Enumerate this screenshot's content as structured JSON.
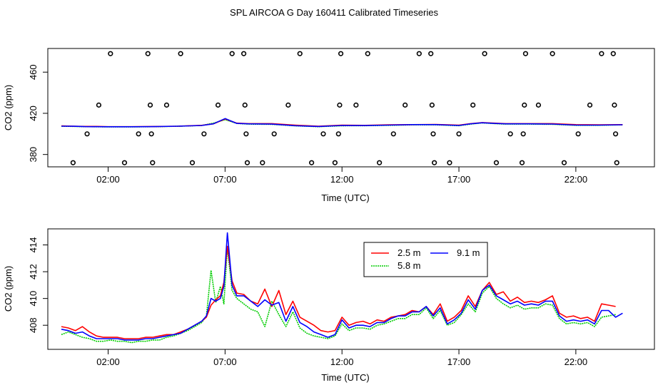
{
  "page_title": "SPL AIRCOA G  Day 160411  Calibrated Timeseries",
  "chart_data": [
    {
      "type": "line",
      "panel": "top",
      "title": "SPL AIRCOA G  Day 160411  Calibrated Timeseries",
      "xlabel": "Time (UTC)",
      "ylabel": "CO2 (ppm)",
      "xlim": [
        0,
        25.3
      ],
      "ylim": [
        368,
        483
      ],
      "x_ticks": [
        2,
        7,
        12,
        17,
        22
      ],
      "x_tick_labels": [
        "02:00",
        "07:00",
        "12:00",
        "17:00",
        "22:00"
      ],
      "y_ticks": [
        380,
        420,
        460
      ],
      "y_tick_labels": [
        "380",
        "420",
        "460"
      ],
      "grid": false,
      "legend": "none",
      "series": [
        {
          "name": "2.5 m",
          "color": "#ff0000",
          "x": [
            0,
            0.5,
            1,
            1.5,
            2,
            3,
            4,
            5,
            6,
            6.5,
            7,
            7.5,
            8,
            9,
            10,
            11,
            12,
            13,
            14,
            15,
            16,
            17,
            17.5,
            18,
            18.5,
            19,
            20,
            21,
            22,
            23,
            24
          ],
          "y": [
            407.8,
            407.5,
            407.3,
            407.3,
            407.0,
            407.0,
            407.2,
            407.5,
            408.3,
            409.8,
            414.5,
            410.5,
            410.0,
            410.0,
            408.5,
            407.5,
            408.5,
            408.3,
            408.8,
            409.0,
            409.2,
            408.5,
            410.0,
            411.0,
            410.5,
            410.0,
            410.0,
            410.0,
            409.0,
            408.8,
            409.0
          ]
        },
        {
          "name": "5.8 m",
          "color": "#00cc00",
          "x": [
            0,
            0.5,
            1,
            1.5,
            2,
            3,
            4,
            5,
            6,
            6.5,
            7,
            7.5,
            8,
            9,
            10,
            11,
            12,
            13,
            14,
            15,
            16,
            17,
            17.5,
            18,
            18.5,
            19,
            20,
            21,
            22,
            23,
            24
          ],
          "y": [
            407.4,
            407.3,
            407.0,
            406.9,
            406.8,
            406.8,
            407.0,
            407.4,
            408.2,
            410.5,
            413.8,
            410.2,
            409.5,
            409.3,
            407.8,
            407.0,
            407.9,
            408.0,
            408.3,
            408.8,
            408.8,
            408.0,
            409.5,
            410.7,
            410.0,
            409.5,
            409.5,
            409.3,
            408.3,
            408.3,
            408.8
          ]
        },
        {
          "name": "9.1 m",
          "color": "#0000ff",
          "x": [
            0,
            0.5,
            1,
            1.5,
            2,
            3,
            4,
            5,
            6,
            6.5,
            7,
            7.5,
            8,
            9,
            10,
            11,
            12,
            13,
            14,
            15,
            16,
            17,
            17.5,
            18,
            18.5,
            19,
            20,
            21,
            22,
            23,
            24
          ],
          "y": [
            407.5,
            407.4,
            407.1,
            407.0,
            406.9,
            406.9,
            407.1,
            407.5,
            408.2,
            409.8,
            414.9,
            410.2,
            409.8,
            409.5,
            408.0,
            407.2,
            408.2,
            408.1,
            408.5,
            409.0,
            409.0,
            408.2,
            409.8,
            410.8,
            410.2,
            409.8,
            409.8,
            409.6,
            408.5,
            408.5,
            408.9
          ]
        }
      ],
      "calibration_markers": {
        "x": [
          0.5,
          1.1,
          1.6,
          2.1,
          2.7,
          3.3,
          3.7,
          3.8,
          3.85,
          3.9,
          4.5,
          5.1,
          5.6,
          6.1,
          6.7,
          7.3,
          7.8,
          7.85,
          7.9,
          7.95,
          8.6,
          9.1,
          9.7,
          10.2,
          10.7,
          11.2,
          11.7,
          11.85,
          11.9,
          11.95,
          12.6,
          13.1,
          13.6,
          14.2,
          14.7,
          15.3,
          15.8,
          15.85,
          15.9,
          15.95,
          16.6,
          17.0,
          17.6,
          18.1,
          18.6,
          19.2,
          19.7,
          19.75,
          19.8,
          19.85,
          20.4,
          21.0,
          21.5,
          22.1,
          22.6,
          23.1,
          23.6,
          23.65,
          23.7,
          23.75
        ],
        "y": [
          372,
          400,
          428,
          478,
          372,
          400,
          478,
          428,
          400,
          372,
          428,
          478,
          372,
          400,
          428,
          478,
          478,
          428,
          400,
          372,
          372,
          400,
          428,
          478,
          372,
          400,
          372,
          400,
          428,
          478,
          428,
          478,
          372,
          400,
          428,
          478,
          478,
          428,
          400,
          372,
          372,
          400,
          428,
          478,
          372,
          400,
          372,
          400,
          428,
          478,
          428,
          478,
          372,
          400,
          428,
          478,
          478,
          428,
          400,
          372
        ]
      }
    },
    {
      "type": "line",
      "panel": "bottom",
      "xlabel": "Time (UTC)",
      "ylabel": "CO2 (ppm)",
      "xlim": [
        0,
        25.3
      ],
      "ylim": [
        406.2,
        415.2
      ],
      "x_ticks": [
        2,
        7,
        12,
        17,
        22
      ],
      "x_tick_labels": [
        "02:00",
        "07:00",
        "12:00",
        "17:00",
        "22:00"
      ],
      "y_ticks": [
        408,
        410,
        412,
        414
      ],
      "y_tick_labels": [
        "408",
        "410",
        "412",
        "414"
      ],
      "grid": false,
      "legend": "top-center",
      "legend_entries": [
        "2.5 m",
        "9.1 m",
        "5.8 m"
      ],
      "series": [
        {
          "name": "2.5 m",
          "color": "#ff0000",
          "x": [
            0,
            0.3,
            0.6,
            0.9,
            1.2,
            1.5,
            1.8,
            2.1,
            2.4,
            2.7,
            3.0,
            3.3,
            3.6,
            3.9,
            4.2,
            4.5,
            4.8,
            5.1,
            5.4,
            5.7,
            6.0,
            6.2,
            6.4,
            6.6,
            6.8,
            6.95,
            7.1,
            7.3,
            7.5,
            7.8,
            8.1,
            8.4,
            8.7,
            9.0,
            9.3,
            9.6,
            9.9,
            10.2,
            10.5,
            10.8,
            11.1,
            11.4,
            11.7,
            12.0,
            12.3,
            12.6,
            12.9,
            13.2,
            13.5,
            13.8,
            14.1,
            14.4,
            14.7,
            15.0,
            15.3,
            15.6,
            15.9,
            16.2,
            16.5,
            16.8,
            17.1,
            17.4,
            17.7,
            18.0,
            18.3,
            18.6,
            18.9,
            19.2,
            19.5,
            19.8,
            20.1,
            20.4,
            20.7,
            21.0,
            21.3,
            21.6,
            21.9,
            22.2,
            22.5,
            22.8,
            23.1,
            23.4,
            23.7
          ],
          "y": [
            407.9,
            407.8,
            407.6,
            407.9,
            407.5,
            407.2,
            407.1,
            407.1,
            407.1,
            407.0,
            407.0,
            407.0,
            407.1,
            407.1,
            407.2,
            407.3,
            407.3,
            407.5,
            407.7,
            408.0,
            408.3,
            408.6,
            409.5,
            409.9,
            410.2,
            411.2,
            413.9,
            411.3,
            410.4,
            410.3,
            409.8,
            409.6,
            410.7,
            409.4,
            410.6,
            408.8,
            409.8,
            408.6,
            408.3,
            408.0,
            407.6,
            407.5,
            407.6,
            408.6,
            408.0,
            408.2,
            408.3,
            408.1,
            408.4,
            408.3,
            408.6,
            408.7,
            408.8,
            409.1,
            409.0,
            409.4,
            408.8,
            409.6,
            408.3,
            408.6,
            409.1,
            410.2,
            409.4,
            410.6,
            411.2,
            410.3,
            410.5,
            409.8,
            410.1,
            409.7,
            409.8,
            409.7,
            409.9,
            410.2,
            408.9,
            408.6,
            408.7,
            408.5,
            408.6,
            408.3,
            409.6,
            409.5,
            409.4
          ]
        },
        {
          "name": "5.8 m",
          "color": "#00cc00",
          "x": [
            0,
            0.3,
            0.6,
            0.9,
            1.2,
            1.5,
            1.8,
            2.1,
            2.4,
            2.7,
            3.0,
            3.3,
            3.6,
            3.9,
            4.2,
            4.5,
            4.8,
            5.1,
            5.4,
            5.7,
            6.0,
            6.2,
            6.4,
            6.6,
            6.8,
            6.95,
            7.1,
            7.3,
            7.5,
            7.8,
            8.1,
            8.4,
            8.7,
            9.0,
            9.3,
            9.6,
            9.9,
            10.2,
            10.5,
            10.8,
            11.1,
            11.4,
            11.7,
            12.0,
            12.3,
            12.6,
            12.9,
            13.2,
            13.5,
            13.8,
            14.1,
            14.4,
            14.7,
            15.0,
            15.3,
            15.6,
            15.9,
            16.2,
            16.5,
            16.8,
            17.1,
            17.4,
            17.7,
            18.0,
            18.3,
            18.6,
            18.9,
            19.2,
            19.5,
            19.8,
            20.1,
            20.4,
            20.7,
            21.0,
            21.3,
            21.6,
            21.9,
            22.2,
            22.5,
            22.8,
            23.1,
            23.4,
            23.7
          ],
          "y": [
            407.3,
            407.5,
            407.3,
            407.1,
            407.0,
            406.8,
            406.8,
            406.9,
            406.8,
            406.8,
            406.7,
            406.8,
            406.8,
            406.9,
            406.9,
            407.1,
            407.2,
            407.4,
            407.6,
            407.9,
            408.2,
            408.7,
            412.1,
            409.7,
            410.9,
            409.6,
            413.8,
            410.6,
            410.0,
            409.6,
            409.2,
            409.0,
            407.9,
            409.8,
            408.8,
            407.9,
            409.0,
            407.8,
            407.4,
            407.2,
            407.1,
            407.0,
            407.2,
            408.1,
            407.6,
            407.8,
            407.8,
            407.7,
            408.0,
            408.1,
            408.3,
            408.5,
            408.5,
            408.8,
            408.8,
            409.3,
            408.5,
            409.1,
            408.0,
            408.2,
            408.8,
            409.6,
            409.0,
            410.4,
            410.9,
            410.0,
            409.6,
            409.3,
            409.5,
            409.2,
            409.3,
            409.3,
            409.6,
            409.5,
            408.5,
            408.1,
            408.2,
            408.1,
            408.2,
            407.9,
            408.6,
            408.7,
            408.8
          ]
        },
        {
          "name": "9.1 m",
          "color": "#0000ff",
          "x": [
            0,
            0.3,
            0.6,
            0.9,
            1.2,
            1.5,
            1.8,
            2.1,
            2.4,
            2.7,
            3.0,
            3.3,
            3.6,
            3.9,
            4.2,
            4.5,
            4.8,
            5.1,
            5.4,
            5.7,
            6.0,
            6.2,
            6.4,
            6.6,
            6.8,
            6.95,
            7.1,
            7.3,
            7.5,
            7.8,
            8.1,
            8.4,
            8.7,
            9.0,
            9.3,
            9.6,
            9.9,
            10.2,
            10.5,
            10.8,
            11.1,
            11.4,
            11.7,
            12.0,
            12.3,
            12.6,
            12.9,
            13.2,
            13.5,
            13.8,
            14.1,
            14.4,
            14.7,
            15.0,
            15.3,
            15.6,
            15.9,
            16.2,
            16.5,
            16.8,
            17.1,
            17.4,
            17.7,
            18.0,
            18.3,
            18.6,
            18.9,
            19.2,
            19.5,
            19.8,
            20.1,
            20.4,
            20.7,
            21.0,
            21.3,
            21.6,
            21.9,
            22.2,
            22.5,
            22.8,
            23.1,
            23.4,
            23.7,
            24.0
          ],
          "y": [
            407.7,
            407.6,
            407.4,
            407.5,
            407.2,
            407.0,
            407.0,
            407.0,
            407.0,
            406.9,
            406.9,
            406.9,
            407.0,
            407.0,
            407.1,
            407.2,
            407.3,
            407.4,
            407.7,
            408.0,
            408.3,
            408.7,
            410.0,
            409.8,
            410.0,
            410.9,
            414.9,
            411.0,
            410.2,
            410.2,
            409.8,
            409.4,
            409.9,
            409.5,
            409.7,
            408.3,
            409.4,
            408.2,
            407.9,
            407.5,
            407.3,
            407.1,
            407.3,
            408.4,
            407.8,
            408.0,
            408.0,
            407.9,
            408.2,
            408.2,
            408.5,
            408.7,
            408.7,
            409.0,
            409.0,
            409.4,
            408.7,
            409.3,
            408.1,
            408.4,
            408.9,
            409.9,
            409.2,
            410.6,
            411.0,
            410.2,
            409.9,
            409.6,
            409.8,
            409.5,
            409.6,
            409.5,
            409.8,
            409.8,
            408.7,
            408.3,
            408.4,
            408.3,
            408.4,
            408.1,
            409.1,
            409.1,
            408.6,
            408.9
          ]
        }
      ]
    }
  ]
}
